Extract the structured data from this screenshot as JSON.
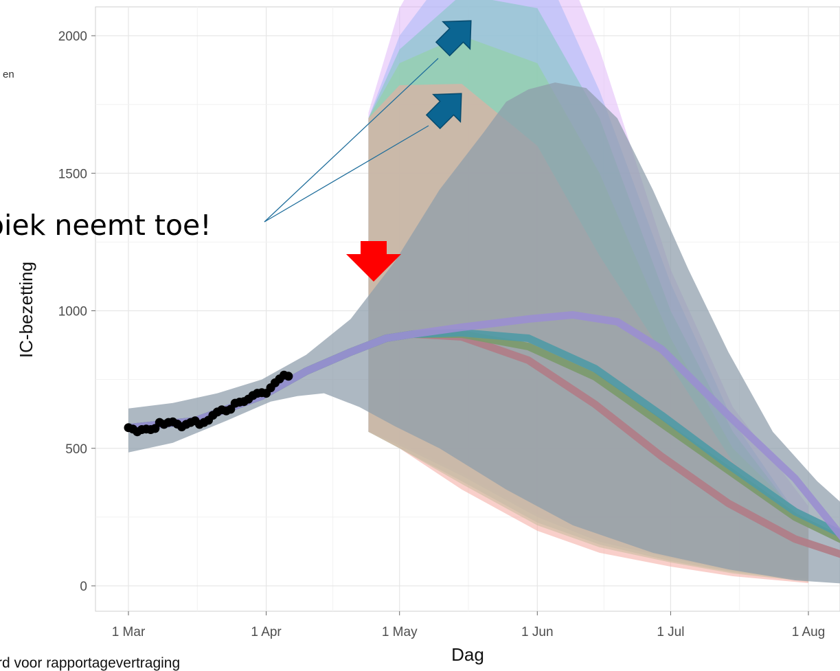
{
  "chart_data": {
    "type": "line",
    "xlabel": "Dag",
    "ylabel": "IC-bezetting",
    "x_tick_labels": [
      "1 Mar",
      "1 Apr",
      "1 May",
      "1 Jun",
      "1 Jul",
      "1 Aug"
    ],
    "x_tick_dates": [
      "2021-03-01",
      "2021-04-01",
      "2021-05-01",
      "2021-06-01",
      "2021-07-01",
      "2021-08-01"
    ],
    "xlim": [
      "2021-03-01",
      "2021-08-01"
    ],
    "y_ticks": [
      0,
      500,
      1000,
      1500,
      2000
    ],
    "ylim": [
      -80,
      2100
    ],
    "grid": true,
    "observed": {
      "x": [
        "2021-03-01",
        "2021-03-02",
        "2021-03-03",
        "2021-03-04",
        "2021-03-05",
        "2021-03-06",
        "2021-03-07",
        "2021-03-08",
        "2021-03-09",
        "2021-03-10",
        "2021-03-11",
        "2021-03-12",
        "2021-03-13",
        "2021-03-14",
        "2021-03-15",
        "2021-03-16",
        "2021-03-17",
        "2021-03-18",
        "2021-03-19",
        "2021-03-20",
        "2021-03-21",
        "2021-03-22",
        "2021-03-23",
        "2021-03-24",
        "2021-03-25",
        "2021-03-26",
        "2021-03-27",
        "2021-03-28",
        "2021-03-29",
        "2021-03-30",
        "2021-03-31",
        "2021-04-01",
        "2021-04-02",
        "2021-04-03",
        "2021-04-04",
        "2021-04-05",
        "2021-04-06"
      ],
      "y": [
        575,
        570,
        560,
        568,
        570,
        568,
        572,
        594,
        587,
        594,
        596,
        588,
        578,
        587,
        594,
        600,
        587,
        594,
        602,
        620,
        632,
        640,
        636,
        642,
        664,
        668,
        670,
        679,
        692,
        700,
        702,
        700,
        720,
        738,
        752,
        766,
        762
      ]
    },
    "series": [
      {
        "color": "#f4a79e",
        "x": [
          "2021-04-24",
          "2021-05-01",
          "2021-05-15",
          "2021-06-01",
          "2021-06-15",
          "2021-07-01",
          "2021-07-15",
          "2021-08-01"
        ],
        "y": [
          910,
          905,
          860,
          760,
          640,
          560,
          500,
          460
        ],
        "lower": [
          560,
          500,
          350,
          200,
          120,
          70,
          35,
          10
        ],
        "upper": [
          1700,
          1820,
          1825,
          1600,
          1200,
          800,
          450,
          230
        ]
      },
      {
        "color": "#8fd49a",
        "x": [
          "2021-04-24",
          "2021-05-01",
          "2021-05-15",
          "2021-06-01",
          "2021-06-15",
          "2021-07-01",
          "2021-07-15",
          "2021-08-01"
        ],
        "y": [
          910,
          915,
          880,
          760,
          630,
          470,
          310,
          140
        ],
        "lower": [
          560,
          500,
          370,
          220,
          140,
          85,
          45,
          15
        ],
        "upper": [
          1700,
          1900,
          2000,
          1900,
          1500,
          900,
          500,
          230
        ]
      },
      {
        "color": "#7fc8c0",
        "x": [
          "2021-04-24",
          "2021-05-01",
          "2021-05-15",
          "2021-06-01",
          "2021-06-15",
          "2021-07-01",
          "2021-07-15",
          "2021-08-01"
        ],
        "y": [
          910,
          918,
          905,
          770,
          640,
          480,
          320,
          160
        ],
        "lower": [
          560,
          500,
          380,
          230,
          150,
          90,
          50,
          20
        ],
        "upper": [
          1700,
          1950,
          2150,
          2100,
          1700,
          1000,
          560,
          200
        ]
      },
      {
        "color": "#a8b8f8",
        "x": [
          "2021-04-24",
          "2021-05-01",
          "2021-05-15",
          "2021-06-01",
          "2021-06-15",
          "2021-07-01",
          "2021-07-15",
          "2021-08-01"
        ],
        "y": [
          910,
          925,
          960,
          930,
          780,
          560,
          340,
          160
        ],
        "lower": [
          560,
          510,
          400,
          250,
          160,
          100,
          55,
          25
        ],
        "upper": [
          1700,
          2000,
          2300,
          2300,
          1800,
          1100,
          600,
          200
        ]
      },
      {
        "color": "#e0b8f8",
        "x": [
          "2021-04-24",
          "2021-05-01",
          "2021-05-15",
          "2021-06-01",
          "2021-06-15",
          "2021-07-01",
          "2021-07-15",
          "2021-08-01"
        ],
        "y": [
          910,
          940,
          980,
          960,
          800,
          560,
          330,
          110
        ],
        "lower": [
          560,
          520,
          410,
          260,
          170,
          110,
          60,
          30
        ],
        "upper": [
          1720,
          2100,
          2500,
          2500,
          1950,
          1150,
          650,
          290
        ]
      }
    ]
  },
  "annotations": {
    "callout": "piek neemt toe!",
    "bottom_text": "rd voor rapportagevertraging",
    "legend_fragment": "en"
  },
  "colors": {
    "observed_points": "#000000",
    "main_band": "#8e9cab",
    "main_line": "#9a8fd0",
    "red_line": "#b07c86",
    "teal_line": "#4f9aa5",
    "green_line": "#7a9a6a",
    "arrow_red": "#ff0000",
    "arrow_blue": "#0b6592",
    "pointer_lines": "#1e6d9b",
    "grid": "#e6e6e6"
  }
}
